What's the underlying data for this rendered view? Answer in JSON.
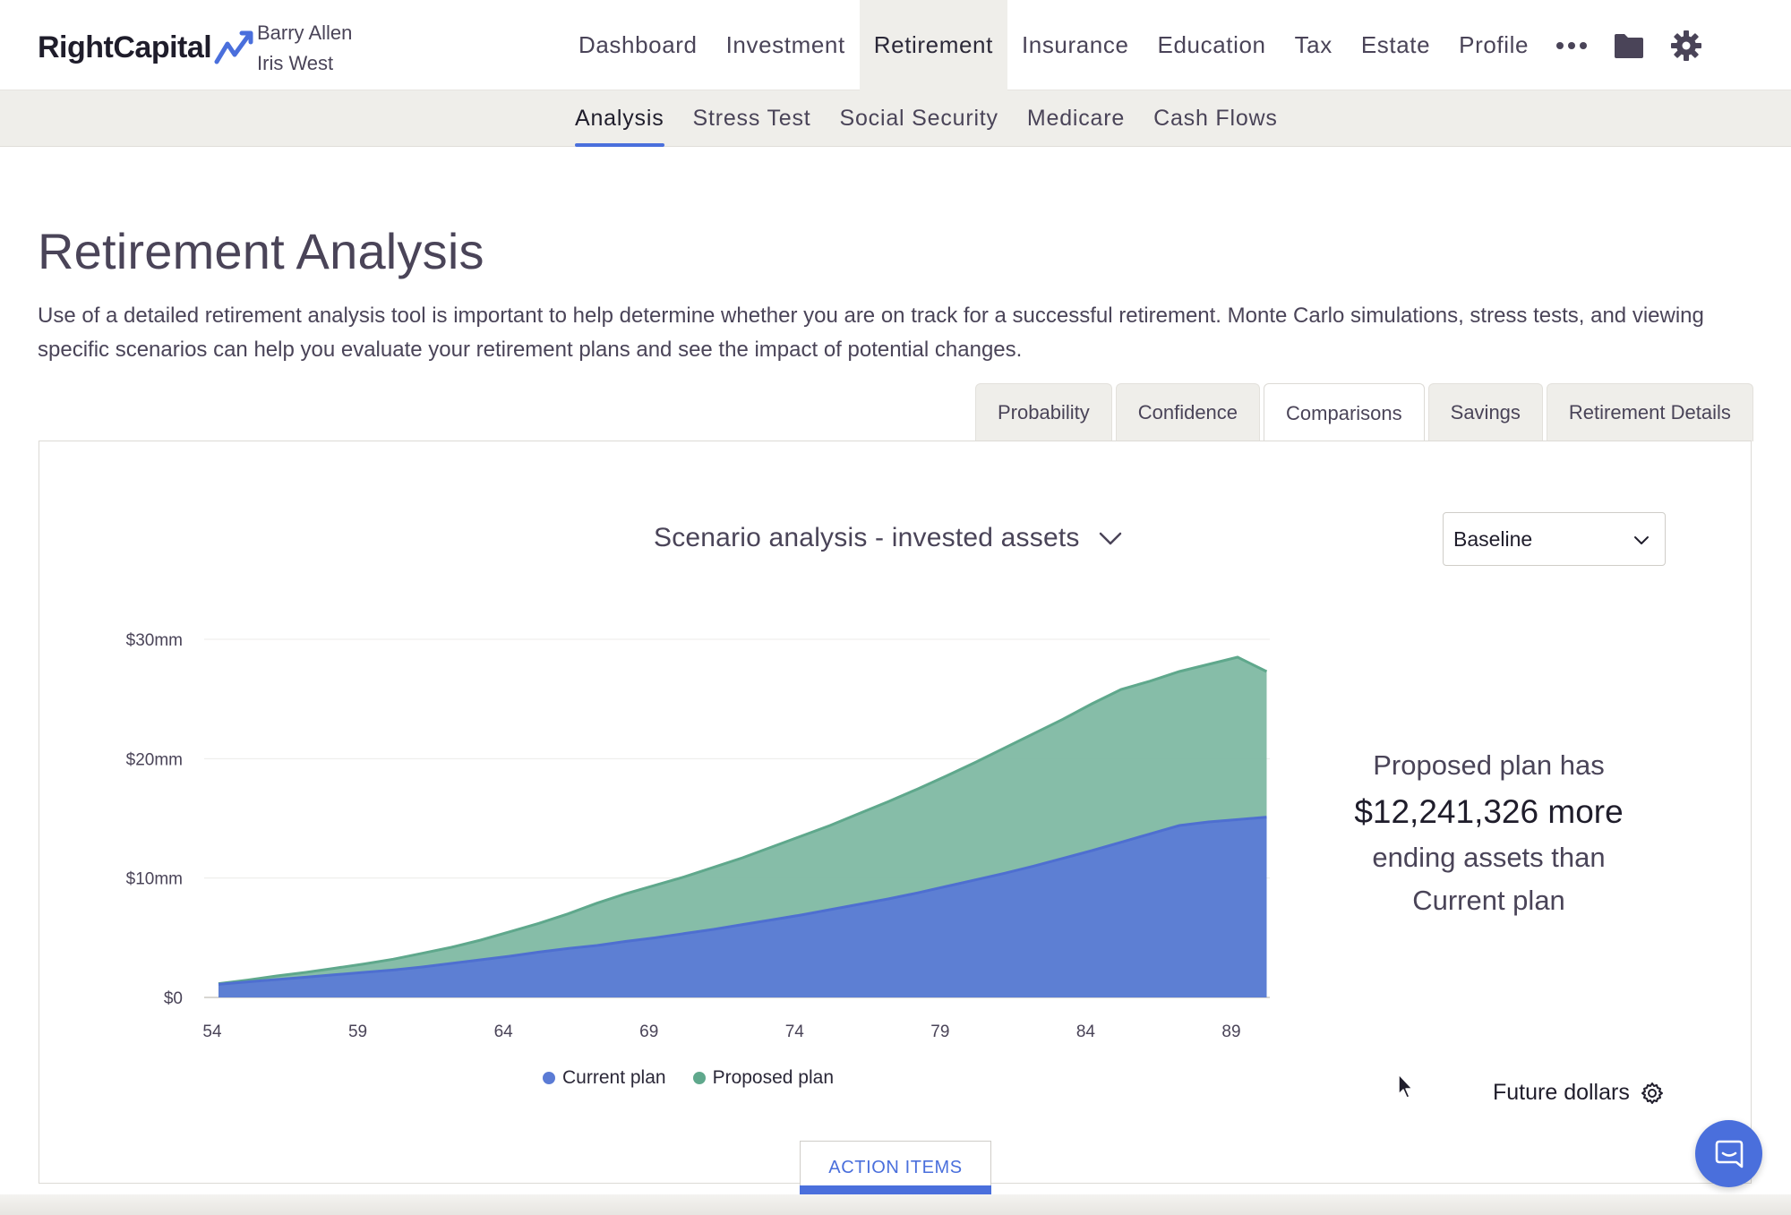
{
  "brand": {
    "name": "RightCapital",
    "accent": "#4a6fdc"
  },
  "clients": [
    "Barry Allen",
    "Iris West"
  ],
  "main_nav": [
    {
      "label": "Dashboard",
      "active": false
    },
    {
      "label": "Investment",
      "active": false
    },
    {
      "label": "Retirement",
      "active": true
    },
    {
      "label": "Insurance",
      "active": false
    },
    {
      "label": "Education",
      "active": false
    },
    {
      "label": "Tax",
      "active": false
    },
    {
      "label": "Estate",
      "active": false
    },
    {
      "label": "Profile",
      "active": false
    }
  ],
  "nav_icons": [
    "more-icon",
    "folder-icon",
    "gear-icon"
  ],
  "sub_nav": [
    {
      "label": "Analysis",
      "active": true
    },
    {
      "label": "Stress Test",
      "active": false
    },
    {
      "label": "Social Security",
      "active": false
    },
    {
      "label": "Medicare",
      "active": false
    },
    {
      "label": "Cash Flows",
      "active": false
    }
  ],
  "page": {
    "title": "Retirement Analysis",
    "description": "Use of a detailed retirement analysis tool is important to help determine whether you are on track for a successful retirement. Monte Carlo simulations, stress tests, and viewing specific scenarios can help you evaluate your retirement plans and see the impact of potential changes."
  },
  "tabs": [
    {
      "label": "Probability",
      "active": false
    },
    {
      "label": "Confidence",
      "active": false
    },
    {
      "label": "Comparisons",
      "active": true
    },
    {
      "label": "Savings",
      "active": false
    },
    {
      "label": "Retirement Details",
      "active": false
    }
  ],
  "chart_header": {
    "title": "Scenario analysis - invested assets",
    "scenario_selected": "Baseline"
  },
  "summary": {
    "line1": "Proposed plan has",
    "amount": "$12,241,326 more",
    "line3": "ending assets than",
    "line4": "Current plan"
  },
  "future_dollars_label": "Future dollars",
  "action_items_label": "ACTION ITEMS",
  "chart_data": {
    "type": "area",
    "x": [
      54,
      55,
      56,
      57,
      58,
      59,
      60,
      61,
      62,
      63,
      64,
      65,
      66,
      67,
      68,
      69,
      70,
      71,
      72,
      73,
      74,
      75,
      76,
      77,
      78,
      79,
      80,
      81,
      82,
      83,
      84,
      85,
      86,
      87,
      88,
      89,
      90
    ],
    "x_ticks": [
      "54",
      "59",
      "64",
      "69",
      "74",
      "79",
      "84",
      "89"
    ],
    "y_ticks": [
      "$0",
      "$10mm",
      "$20mm",
      "$30mm"
    ],
    "ylim": [
      0,
      30
    ],
    "y_unit": "mm",
    "grid": true,
    "legend_position": "bottom",
    "series": [
      {
        "name": "Current plan",
        "color": "#5b7bd5",
        "values": [
          1.1,
          1.3,
          1.5,
          1.7,
          1.9,
          2.1,
          2.3,
          2.55,
          2.85,
          3.15,
          3.45,
          3.8,
          4.1,
          4.35,
          4.7,
          5.0,
          5.35,
          5.7,
          6.1,
          6.5,
          6.9,
          7.35,
          7.8,
          8.25,
          8.75,
          9.3,
          9.85,
          10.4,
          11.0,
          11.65,
          12.3,
          13.0,
          13.7,
          14.4,
          14.7,
          14.9,
          15.1
        ]
      },
      {
        "name": "Proposed plan",
        "color": "#7fb9a3",
        "values": [
          1.15,
          1.45,
          1.8,
          2.1,
          2.45,
          2.8,
          3.2,
          3.7,
          4.2,
          4.8,
          5.5,
          6.2,
          7.0,
          7.9,
          8.7,
          9.4,
          10.1,
          10.9,
          11.7,
          12.6,
          13.5,
          14.4,
          15.4,
          16.4,
          17.45,
          18.55,
          19.7,
          20.9,
          22.1,
          23.3,
          24.6,
          25.8,
          26.5,
          27.3,
          27.9,
          28.5,
          27.3
        ]
      }
    ]
  }
}
